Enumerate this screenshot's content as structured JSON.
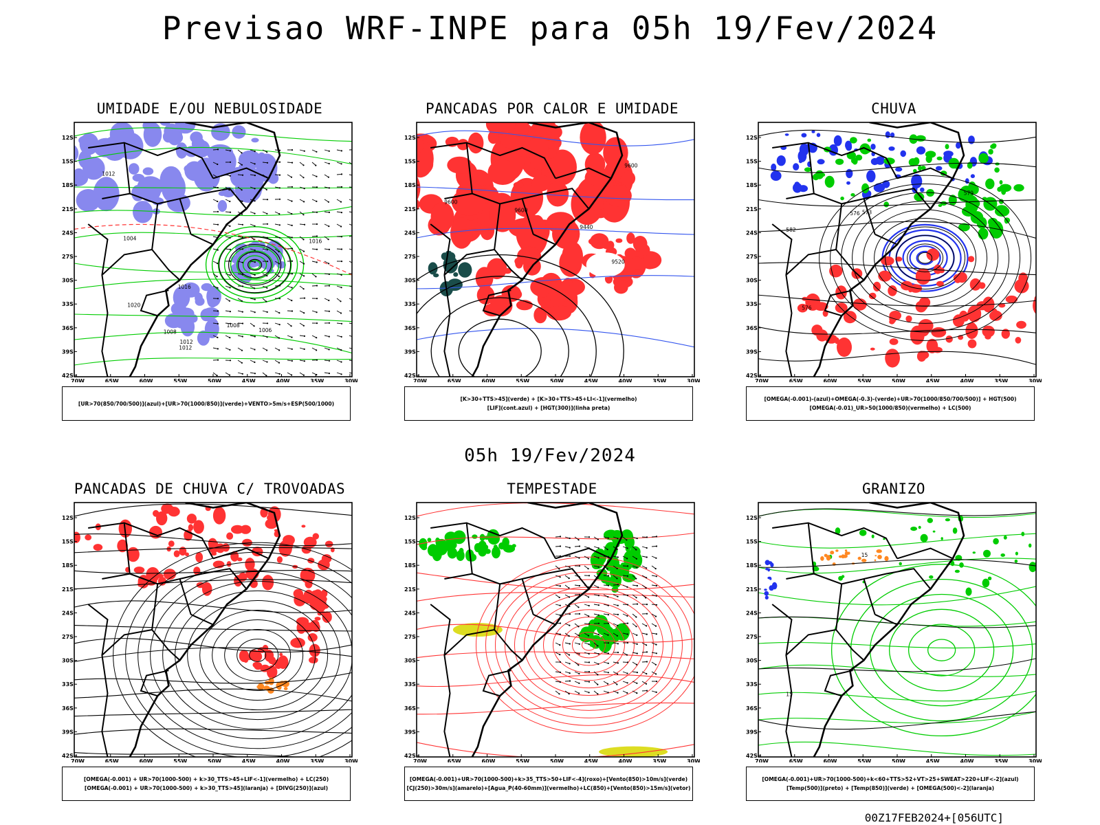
{
  "title": "Previsao WRF-INPE  para 05h 19/Fev/2024",
  "mid_title": "05h 19/Fev/2024",
  "footer": "00Z17FEB2024+[056UTC]",
  "axes": {
    "lat_labels": [
      "12S",
      "15S",
      "18S",
      "21S",
      "24S",
      "27S",
      "30S",
      "33S",
      "36S",
      "39S",
      "42S"
    ],
    "lon_labels": [
      "70W",
      "65W",
      "60W",
      "55W",
      "50W",
      "45W",
      "40W",
      "35W",
      "30W"
    ]
  },
  "colors": {
    "blue": "#8888ee",
    "green": "#00cc00",
    "red": "#ff3333",
    "dark": "#1a4d4a",
    "orange": "#ff8822",
    "yellow": "#dddd22"
  },
  "panels": [
    {
      "title": "UMIDADE E/OU NEBULOSIDADE",
      "caption": [
        "[UR>70(850/700/500)](azul)+[UR>70(1000/850)](verde)+VENTO>5m/s+ESP(500/1000)"
      ],
      "contour_labels": [
        "1012",
        "1008",
        "1008",
        "1006",
        "1016",
        "1012",
        "1004",
        "1012",
        "1020",
        "1016"
      ]
    },
    {
      "title": "PANCADAS POR CALOR E UMIDADE",
      "caption": [
        "[K>30+TTS>45](verde) + [K>30+TTS>45+LI<-1](vermelho)",
        "[LIF](cont.azul) + [HGT(300)](linha preta)"
      ],
      "contour_labels": [
        "9600",
        "9600",
        "9600",
        "9520",
        "9440"
      ]
    },
    {
      "title": "CHUVA",
      "caption": [
        "[OMEGA(-0.001)-(azul)+OMEGA(-0.3)-(verde)+UR>70(1000/850/700/500)] + HGT(500)",
        "[OMEGA(-0.01)_UR>50(1000/850)(vermelho) + LC(500)"
      ],
      "contour_labels": [
        "582",
        "576",
        "573",
        "579",
        "576"
      ]
    },
    {
      "title": "PANCADAS DE CHUVA C/ TROVOADAS",
      "caption": [
        "[OMEGA(-0.001) + UR>70(1000-500) + k>30_TTS>45+LIF<-1](vermelho) + LC(250)",
        "[OMEGA(-0.001) + UR>70(1000-500) + k>30_TTS>45](laranja) + [DIVG(250)](azul)"
      ],
      "contour_labels": []
    },
    {
      "title": "TEMPESTADE",
      "caption": [
        "[OMEGA(-0.001)+UR>70(1000-500)+k>35_TTS>50+LIF<-4](roxo)+[Vento(850)>10m/s](verde)",
        "[CJ(250)>30m/s](amarelo)+[Agua_P(40-60mm)](vermelho)+LC(850)+[Vento(850)>15m/s](vetor)"
      ],
      "contour_labels": []
    },
    {
      "title": "GRANIZO",
      "caption": [
        "[OMEGA(-0.001)+UR>70(1000-500)+k<60+TTS>52+VT>25+SWEAT>220+LIF<-2](azul)",
        "[Temp(500)](preto) + [Temp(850)](verde) + [OMEGA(500)<-2](laranja)"
      ],
      "contour_labels": [
        "15",
        "15"
      ]
    }
  ]
}
